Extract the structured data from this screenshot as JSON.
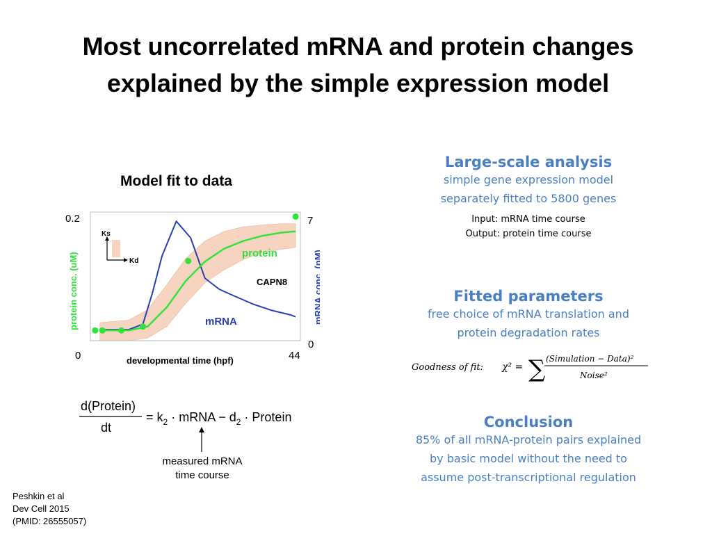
{
  "slide": {
    "title_line1": "Most uncorrelated mRNA and protein changes",
    "title_line2": "explained by the simple expression model",
    "model_label": "Model fit to data"
  },
  "figure": {
    "y_left_label": "protein conc. (uM)",
    "y_right_label": "mRNA conc. (pM)",
    "x_label": "developmental  time (hpf)",
    "y_left_max": "0.2",
    "y_right_max": "7",
    "y_right_min": "0",
    "x_min": "0",
    "x_max": "44",
    "gene": "CAPN8",
    "protein_label": "protein",
    "mrna_label": "mRNA",
    "ks_label": "Ks",
    "kd_label": "Kd",
    "protein_color": "#2ee33a",
    "mrna_color": "#2440b3",
    "band_color": "#f6d4c0"
  },
  "chart_data": {
    "type": "line",
    "xlabel": "developmental  time (hpf)",
    "ylabel_left": "protein conc. (uM)",
    "ylabel_right": "mRNA conc. (pM)",
    "xlim": [
      0,
      44
    ],
    "ylim_left": [
      0,
      0.2
    ],
    "ylim_right": [
      0,
      7
    ],
    "annotation": "CAPN8",
    "series": [
      {
        "name": "mRNA",
        "axis": "right",
        "x": [
          2,
          5,
          8,
          11,
          13,
          15,
          18,
          21,
          24,
          27,
          30,
          34,
          38,
          42,
          43
        ],
        "y": [
          0.6,
          0.6,
          0.6,
          0.9,
          2.6,
          4.6,
          6.5,
          5.6,
          3.4,
          2.8,
          2.45,
          2.0,
          1.65,
          1.4,
          1.3
        ]
      },
      {
        "name": "protein",
        "axis": "left",
        "x": [
          2,
          8,
          12,
          16,
          20,
          24,
          28,
          32,
          36,
          40,
          43
        ],
        "y": [
          0.016,
          0.016,
          0.022,
          0.052,
          0.093,
          0.123,
          0.143,
          0.155,
          0.163,
          0.168,
          0.17
        ]
      },
      {
        "name": "protein band",
        "axis": "left",
        "x": [
          2,
          8,
          12,
          16,
          20,
          24,
          28,
          32,
          36,
          40,
          43
        ],
        "y_upper": [
          0.028,
          0.032,
          0.048,
          0.087,
          0.128,
          0.155,
          0.17,
          0.177,
          0.18,
          0.182,
          0.182
        ],
        "y_lower": [
          0,
          0,
          0.004,
          0.022,
          0.058,
          0.09,
          0.11,
          0.126,
          0.137,
          0.142,
          0.145
        ]
      },
      {
        "name": "protein data",
        "axis": "left",
        "type": "scatter",
        "x": [
          1,
          2.5,
          6.5,
          11,
          20.5,
          43
        ],
        "y": [
          0.016,
          0.016,
          0.016,
          0.022,
          0.124,
          0.193
        ]
      }
    ]
  },
  "equation": {
    "numerator": "d(Protein)",
    "denominator": "dt",
    "rhs_k": "= k",
    "k_sub": "2",
    "rhs_mid": " · mRNA − d",
    "d_sub": "2",
    "rhs_end": " · Protein",
    "annotation_line1": "measured mRNA",
    "annotation_line2": "time course"
  },
  "reference": {
    "line1": "Peshkin et al",
    "line2": "Dev Cell 2015",
    "line3": "(PMID: 26555057)"
  },
  "sections": {
    "large_scale": {
      "heading": "Large-scale analysis",
      "line1": "simple gene expression model",
      "line2": "separately fitted to 5800 genes",
      "input": "Input: mRNA time course",
      "output": "Output: protein time course"
    },
    "fitted": {
      "heading": "Fitted parameters",
      "line1": "free choice of mRNA translation and",
      "line2": "protein degradation rates",
      "gof_label": "Goodness of fit:",
      "gof_chi": "χ² =",
      "gof_num": "(Simulation − Data)²",
      "gof_den": "Noise²"
    },
    "conclusion": {
      "heading": "Conclusion",
      "line1": "85% of all mRNA-protein pairs explained",
      "line2": "by basic model without the need to",
      "line3": "assume post-transcriptional regulation"
    }
  }
}
